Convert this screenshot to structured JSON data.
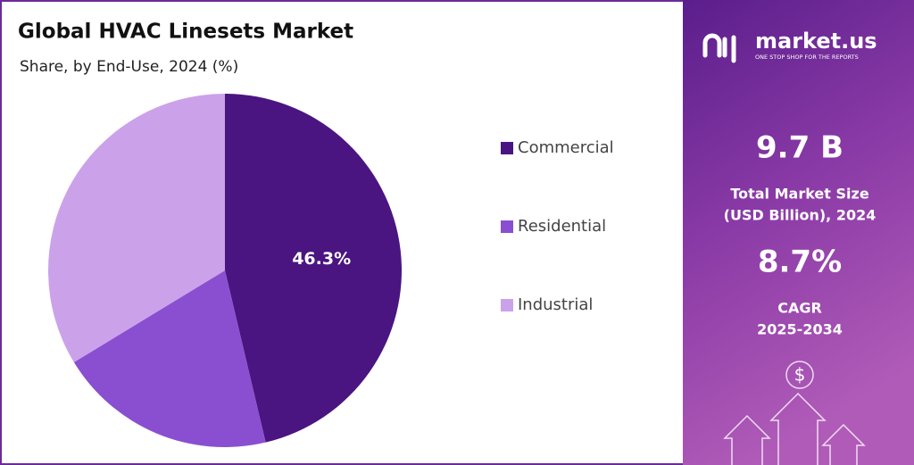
{
  "chart_data": {
    "type": "pie",
    "title": "Global HVAC Linesets Market",
    "subtitle": "Share, by End-Use, 2024 (%)",
    "categories": [
      "Commercial",
      "Residential",
      "Industrial"
    ],
    "values": [
      46.3,
      20.0,
      33.7
    ],
    "value_labels": [
      "46.3%",
      null,
      null
    ],
    "colors": [
      "#4a1580",
      "#8a4fd0",
      "#cba2ea"
    ],
    "start_angle": 0,
    "direction": "clockwise",
    "legend": "right"
  },
  "panel": {
    "brand": "market.us",
    "tagline": "ONE STOP SHOP FOR THE REPORTS",
    "market_size": "9.7 B",
    "market_size_label_1": "Total Market Size",
    "market_size_label_2": "(USD Billion), 2024",
    "cagr": "8.7%",
    "cagr_label": "CAGR",
    "cagr_period": "2025-2034"
  }
}
